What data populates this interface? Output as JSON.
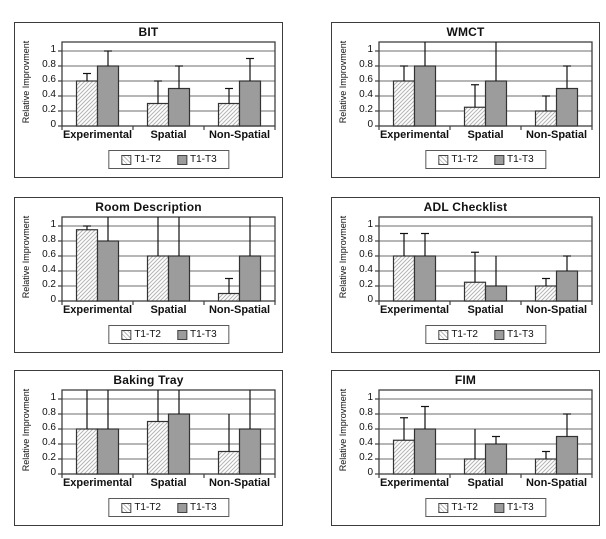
{
  "figure": {
    "background": "#ffffff"
  },
  "colors": {
    "bar_hatched_bg": "#ffffff",
    "bar_hatched_lines": "#b5b5b5",
    "bar_gray": "#9c9c9c",
    "bar_border": "#333333",
    "gridline": "#6e6e6e",
    "axis": "#404040",
    "error_bar": "#111111",
    "panel_border": "#3c3c3c",
    "text": "#111111"
  },
  "legend": {
    "items": [
      {
        "label": "T1-T2",
        "style": "hatched"
      },
      {
        "label": "T1-T3",
        "style": "solid-gray"
      }
    ]
  },
  "chart_data": [
    {
      "type": "bar",
      "title": "BIT",
      "ylabel": "Relative Improvment",
      "categories": [
        "Experimental",
        "Spatial",
        "Non-Spatial"
      ],
      "ylim": [
        0,
        1.12
      ],
      "yticks": [
        0,
        0.2,
        0.4,
        0.6,
        0.8,
        1
      ],
      "ytick_labels": [
        "0",
        "0.2",
        "0.4",
        "0.6",
        "0.8",
        "1"
      ],
      "grid": true,
      "legend_position": "bottom",
      "series": [
        {
          "name": "T1-T2",
          "style": "hatched",
          "values": [
            0.6,
            0.3,
            0.3
          ],
          "error_top": [
            0.7,
            0.6,
            0.5
          ],
          "error_cap": [
            true,
            true,
            true
          ]
        },
        {
          "name": "T1-T3",
          "style": "solid-gray",
          "values": [
            0.8,
            0.5,
            0.6
          ],
          "error_top": [
            1.0,
            0.8,
            0.9
          ],
          "error_cap": [
            true,
            true,
            true
          ]
        }
      ]
    },
    {
      "type": "bar",
      "title": "WMCT",
      "ylabel": "Relative Improvment",
      "categories": [
        "Experimental",
        "Spatial",
        "Non-Spatial"
      ],
      "ylim": [
        0,
        1.12
      ],
      "yticks": [
        0,
        0.2,
        0.4,
        0.6,
        0.8,
        1
      ],
      "ytick_labels": [
        "0",
        "0.2",
        "0.4",
        "0.6",
        "0.8",
        "1"
      ],
      "grid": true,
      "legend_position": "bottom",
      "series": [
        {
          "name": "T1-T2",
          "style": "hatched",
          "values": [
            0.6,
            0.25,
            0.2
          ],
          "error_top": [
            0.8,
            0.55,
            0.4
          ],
          "error_cap": [
            true,
            true,
            true
          ]
        },
        {
          "name": "T1-T3",
          "style": "solid-gray",
          "values": [
            0.8,
            0.6,
            0.5
          ],
          "error_top": [
            1.12,
            1.12,
            0.8
          ],
          "error_cap": [
            false,
            false,
            true
          ]
        }
      ]
    },
    {
      "type": "bar",
      "title": "Room Description",
      "ylabel": "Relative Improvment",
      "categories": [
        "Experimental",
        "Spatial",
        "Non-Spatial"
      ],
      "ylim": [
        0,
        1.12
      ],
      "yticks": [
        0,
        0.2,
        0.4,
        0.6,
        0.8,
        1
      ],
      "ytick_labels": [
        "0",
        "0.2",
        "0.4",
        "0.6",
        "0.8",
        "1"
      ],
      "grid": true,
      "legend_position": "bottom",
      "series": [
        {
          "name": "T1-T2",
          "style": "hatched",
          "values": [
            0.95,
            0.6,
            0.1
          ],
          "error_top": [
            1.0,
            1.12,
            0.3
          ],
          "error_cap": [
            true,
            false,
            true
          ]
        },
        {
          "name": "T1-T3",
          "style": "solid-gray",
          "values": [
            0.8,
            0.6,
            0.6
          ],
          "error_top": [
            1.12,
            1.12,
            1.12
          ],
          "error_cap": [
            false,
            false,
            false
          ]
        }
      ]
    },
    {
      "type": "bar",
      "title": "ADL Checklist",
      "ylabel": "Relative Improvment",
      "categories": [
        "Experimental",
        "Spatial",
        "Non-Spatial"
      ],
      "ylim": [
        0,
        1.12
      ],
      "yticks": [
        0,
        0.2,
        0.4,
        0.6,
        0.8,
        1
      ],
      "ytick_labels": [
        "0",
        "0.2",
        "0.4",
        "0.6",
        "0.8",
        "1"
      ],
      "grid": true,
      "legend_position": "bottom",
      "series": [
        {
          "name": "T1-T2",
          "style": "hatched",
          "values": [
            0.6,
            0.25,
            0.2
          ],
          "error_top": [
            0.9,
            0.65,
            0.3
          ],
          "error_cap": [
            true,
            true,
            true
          ]
        },
        {
          "name": "T1-T3",
          "style": "solid-gray",
          "values": [
            0.6,
            0.2,
            0.4
          ],
          "error_top": [
            0.9,
            0.6,
            0.6
          ],
          "error_cap": [
            true,
            false,
            true
          ]
        }
      ]
    },
    {
      "type": "bar",
      "title": "Baking Tray",
      "ylabel": "Relative Improvment",
      "categories": [
        "Experimental",
        "Spatial",
        "Non-Spatial"
      ],
      "ylim": [
        0,
        1.12
      ],
      "yticks": [
        0,
        0.2,
        0.4,
        0.6,
        0.8,
        1
      ],
      "ytick_labels": [
        "0",
        "0.2",
        "0.4",
        "0.6",
        "0.8",
        "1"
      ],
      "grid": true,
      "legend_position": "bottom",
      "series": [
        {
          "name": "T1-T2",
          "style": "hatched",
          "values": [
            0.6,
            0.7,
            0.3
          ],
          "error_top": [
            1.12,
            1.12,
            0.8
          ],
          "error_cap": [
            false,
            false,
            false
          ]
        },
        {
          "name": "T1-T3",
          "style": "solid-gray",
          "values": [
            0.6,
            0.8,
            0.6
          ],
          "error_top": [
            1.12,
            1.12,
            1.12
          ],
          "error_cap": [
            false,
            false,
            false
          ]
        }
      ]
    },
    {
      "type": "bar",
      "title": "FIM",
      "ylabel": "Relative Improvment",
      "categories": [
        "Experimental",
        "Spatial",
        "Non-Spatial"
      ],
      "ylim": [
        0,
        1.12
      ],
      "yticks": [
        0,
        0.2,
        0.4,
        0.6,
        0.8,
        1
      ],
      "ytick_labels": [
        "0",
        "0.2",
        "0.4",
        "0.6",
        "0.8",
        "1"
      ],
      "grid": true,
      "legend_position": "bottom",
      "series": [
        {
          "name": "T1-T2",
          "style": "hatched",
          "values": [
            0.45,
            0.2,
            0.2
          ],
          "error_top": [
            0.75,
            0.6,
            0.3
          ],
          "error_cap": [
            true,
            false,
            true
          ]
        },
        {
          "name": "T1-T3",
          "style": "solid-gray",
          "values": [
            0.6,
            0.4,
            0.5
          ],
          "error_top": [
            0.9,
            0.5,
            0.8
          ],
          "error_cap": [
            true,
            true,
            true
          ]
        }
      ]
    }
  ]
}
